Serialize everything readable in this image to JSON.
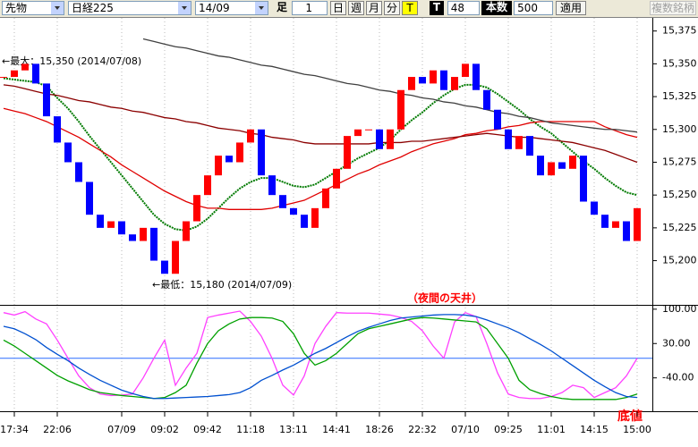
{
  "toolbar": {
    "market": "先物",
    "index": "日経225",
    "contract": "14/09",
    "period_label": "足",
    "period_value": "1",
    "buttons": [
      "日",
      "週",
      "月",
      "分",
      "T"
    ],
    "ma_label": "T",
    "ma_value": "48",
    "count_label": "本数",
    "count_value": "500",
    "apply": "適用",
    "multi": "複数銘柄"
  },
  "chart_data": [
    {
      "type": "candlestick",
      "values": [
        15340,
        15345,
        15350,
        15335,
        15310,
        15290,
        15275,
        15260,
        15235,
        15225,
        15230,
        15220,
        15215,
        15225,
        15200,
        15190,
        15215,
        15230,
        15250,
        15265,
        15280,
        15275,
        15290,
        15300,
        15265,
        15250,
        15240,
        15235,
        15225,
        15240,
        15255,
        15270,
        15295,
        15300,
        15300,
        15285,
        15300,
        15330,
        15340,
        15335,
        15345,
        15330,
        15340,
        15350,
        15330,
        15315,
        15300,
        15285,
        15295,
        15280,
        15265,
        15275,
        15270,
        15280,
        15245,
        15235,
        15225,
        15230,
        15215,
        15240
      ],
      "up_color": "#ff0000",
      "down_color": "#0000ff",
      "series": [
        {
          "color": "#007a00",
          "values": [
            15339,
            15338,
            15337,
            15336,
            15333,
            15324,
            15316,
            15306,
            15295,
            15285,
            15275,
            15265,
            15255,
            15245,
            15235,
            15228,
            15224,
            15223,
            15226,
            15232,
            15240,
            15248,
            15255,
            15260,
            15263,
            15263,
            15260,
            15257,
            15256,
            15258,
            15263,
            15268,
            15273,
            15278,
            15282,
            15286,
            15292,
            15300,
            15307,
            15313,
            15320,
            15326,
            15331,
            15334,
            15334,
            15332,
            15327,
            15321,
            15315,
            15308,
            15302,
            15297,
            15290,
            15283,
            15276,
            15270,
            15263,
            15257,
            15252,
            15250
          ]
        },
        {
          "color": "#e00000",
          "values": [
            15316,
            15314,
            15312,
            15309,
            15306,
            15302,
            15298,
            15294,
            15289,
            15284,
            15279,
            15273,
            15268,
            15263,
            15258,
            15253,
            15249,
            15245,
            15242,
            15240,
            15240,
            15239,
            15239,
            15239,
            15239,
            15240,
            15242,
            15244,
            15246,
            15250,
            15254,
            15258,
            15262,
            15266,
            15269,
            15273,
            15276,
            15279,
            15283,
            15286,
            15289,
            15291,
            15293,
            15296,
            15297,
            15299,
            15300,
            15302,
            15303,
            15305,
            15306,
            15306,
            15306,
            15306,
            15306,
            15306,
            15302,
            15299,
            15296,
            15294
          ]
        },
        {
          "color": "#8b0000",
          "values": [
            15334,
            15333,
            15331,
            15329,
            15327,
            15326,
            15324,
            15322,
            15321,
            15319,
            15317,
            15316,
            15314,
            15313,
            15311,
            15309,
            15308,
            15306,
            15305,
            15303,
            15301,
            15300,
            15299,
            15297,
            15296,
            15294,
            15293,
            15292,
            15290,
            15289,
            15289,
            15289,
            15289,
            15289,
            15289,
            15290,
            15290,
            15290,
            15291,
            15291,
            15292,
            15293,
            15294,
            15295,
            15296,
            15297,
            15296,
            15295,
            15294,
            15294,
            15293,
            15292,
            15291,
            15290,
            15288,
            15286,
            15284,
            15281,
            15278,
            15275
          ]
        },
        {
          "color": "#404040",
          "values": [
            null,
            null,
            null,
            null,
            null,
            null,
            null,
            null,
            null,
            null,
            null,
            null,
            null,
            15369,
            15367,
            15365,
            15363,
            15362,
            15360,
            15358,
            15356,
            15355,
            15353,
            15351,
            15349,
            15348,
            15346,
            15344,
            15342,
            15341,
            15339,
            15337,
            15335,
            15334,
            15332,
            15330,
            15329,
            15327,
            15326,
            15324,
            15323,
            15321,
            15320,
            15318,
            15317,
            15315,
            15313,
            15312,
            15310,
            15309,
            15307,
            15305,
            15304,
            15303,
            15302,
            15301,
            15300,
            15300,
            15299,
            15298
          ]
        }
      ],
      "ylim": [
        15167,
        15385
      ],
      "yticks": [
        {
          "value": 15375,
          "label": "15,375"
        },
        {
          "value": 15350,
          "label": "15,350"
        },
        {
          "value": 15325,
          "label": "15,325"
        },
        {
          "value": 15300,
          "label": "15,300"
        },
        {
          "value": 15275,
          "label": "15,275"
        },
        {
          "value": 15250,
          "label": "15,250"
        },
        {
          "value": 15225,
          "label": "15,225"
        },
        {
          "value": 15200,
          "label": "15,200"
        }
      ],
      "annotations": [
        "←最大：15,350 (2014/07/08)",
        "←最低：15,180 (2014/07/09)",
        "（夜間の天井）"
      ]
    },
    {
      "type": "line",
      "categories": [
        null,
        "17:34",
        null,
        null,
        null,
        "22:06",
        null,
        null,
        null,
        null,
        null,
        "07/09",
        null,
        null,
        null,
        "09:02",
        null,
        null,
        null,
        "09:42",
        null,
        null,
        null,
        "11:18",
        null,
        null,
        null,
        "13:11",
        null,
        null,
        null,
        "14:41",
        null,
        null,
        null,
        "18:26",
        null,
        null,
        null,
        "22:32",
        null,
        null,
        null,
        "07/10",
        null,
        null,
        null,
        "09:25",
        null,
        null,
        null,
        "11:01",
        null,
        null,
        null,
        "14:15",
        null,
        null,
        null,
        "15:00"
      ],
      "series": [
        {
          "color": "#ff40ff",
          "values": [
            93,
            88,
            95,
            80,
            70,
            37,
            0,
            -36,
            -60,
            -73,
            -76,
            -75,
            -73,
            -40,
            0,
            37,
            -55,
            -20,
            10,
            83,
            88,
            92,
            96,
            75,
            45,
            0,
            -55,
            -75,
            -36,
            30,
            65,
            93,
            92,
            92,
            92,
            90,
            88,
            83,
            75,
            56,
            25,
            0,
            74,
            93,
            85,
            30,
            -30,
            -73,
            -80,
            -82,
            -82,
            -78,
            -70,
            -55,
            -60,
            -80,
            -70,
            -60,
            -36,
            0
          ]
        },
        {
          "color": "#00a000",
          "values": [
            37,
            25,
            10,
            -5,
            -20,
            -35,
            -46,
            -55,
            -64,
            -70,
            -73,
            -76,
            -78,
            -80,
            -82,
            -80,
            -70,
            -55,
            -10,
            30,
            56,
            70,
            80,
            83,
            83,
            82,
            75,
            50,
            10,
            -14,
            -5,
            10,
            30,
            50,
            60,
            65,
            70,
            75,
            80,
            83,
            82,
            80,
            78,
            76,
            74,
            60,
            30,
            0,
            -45,
            -64,
            -72,
            -78,
            -82,
            -84,
            -84,
            -84,
            -84,
            -84,
            -80,
            -73
          ]
        },
        {
          "color": "#0050d0",
          "values": [
            65,
            60,
            50,
            38,
            22,
            8,
            -5,
            -20,
            -33,
            -45,
            -55,
            -65,
            -72,
            -78,
            -82,
            -82,
            -81,
            -80,
            -79,
            -78,
            -76,
            -74,
            -70,
            -60,
            -45,
            -35,
            -24,
            -14,
            -2,
            10,
            20,
            32,
            44,
            55,
            63,
            70,
            77,
            82,
            84,
            86,
            88,
            89,
            89,
            88,
            85,
            78,
            70,
            62,
            52,
            40,
            28,
            15,
            0,
            -15,
            -30,
            -45,
            -58,
            -70,
            -78,
            -80
          ]
        }
      ],
      "ylim": [
        -108,
        107
      ],
      "yticks": [
        {
          "value": 100,
          "label": "100.00"
        },
        {
          "value": 30,
          "label": "30.00"
        },
        {
          "value": -40,
          "label": "-40.00"
        }
      ],
      "reference_line": 0,
      "reference_color": "#2a6cff",
      "annotations": [
        "底値"
      ]
    }
  ]
}
